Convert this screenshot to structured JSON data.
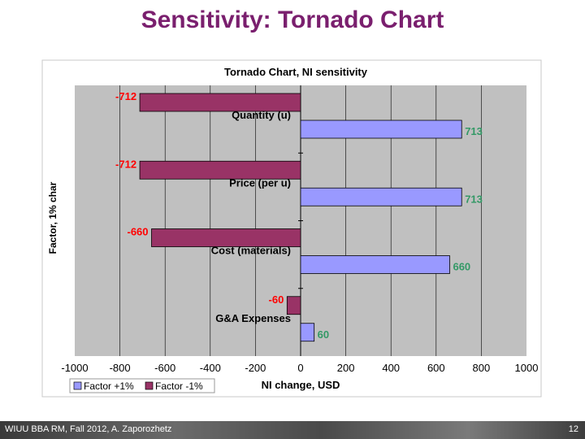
{
  "slide": {
    "title": "Sensitivity: Tornado Chart",
    "footer_left": "WIUU BBA RM, Fall 2012, A. Zaporozhetz",
    "page_number": "12"
  },
  "colors": {
    "title": "#7a1f6e",
    "plus_series": "#9999ff",
    "minus_series": "#993366",
    "plot_bg": "#c0c0c0",
    "minus_label": "#ff0000",
    "plus_label": "#339966"
  },
  "chart_data": {
    "type": "bar",
    "orientation": "horizontal",
    "title": "Tornado Chart, NI sensitivity",
    "xlabel": "NI change, USD",
    "ylabel": "Factor, 1% char",
    "xlim": [
      -1000,
      1000
    ],
    "x_ticks": [
      "-1000",
      "-800",
      "-600",
      "-400",
      "-200",
      "0",
      "200",
      "400",
      "600",
      "800",
      "1000"
    ],
    "categories": [
      "Quantity (u)",
      "Price (per u)",
      "Cost (materials)",
      "G&A Expenses"
    ],
    "series": [
      {
        "name": "Factor +1%",
        "values": [
          713,
          713,
          660,
          60
        ],
        "labels": [
          "713",
          "713",
          "660",
          "60"
        ]
      },
      {
        "name": "Factor -1%",
        "values": [
          -712,
          -712,
          -660,
          -60
        ],
        "labels": [
          "-712",
          "-712",
          "-660",
          "-60"
        ]
      }
    ],
    "grid": "vertical",
    "legend_position": "bottom-left"
  }
}
